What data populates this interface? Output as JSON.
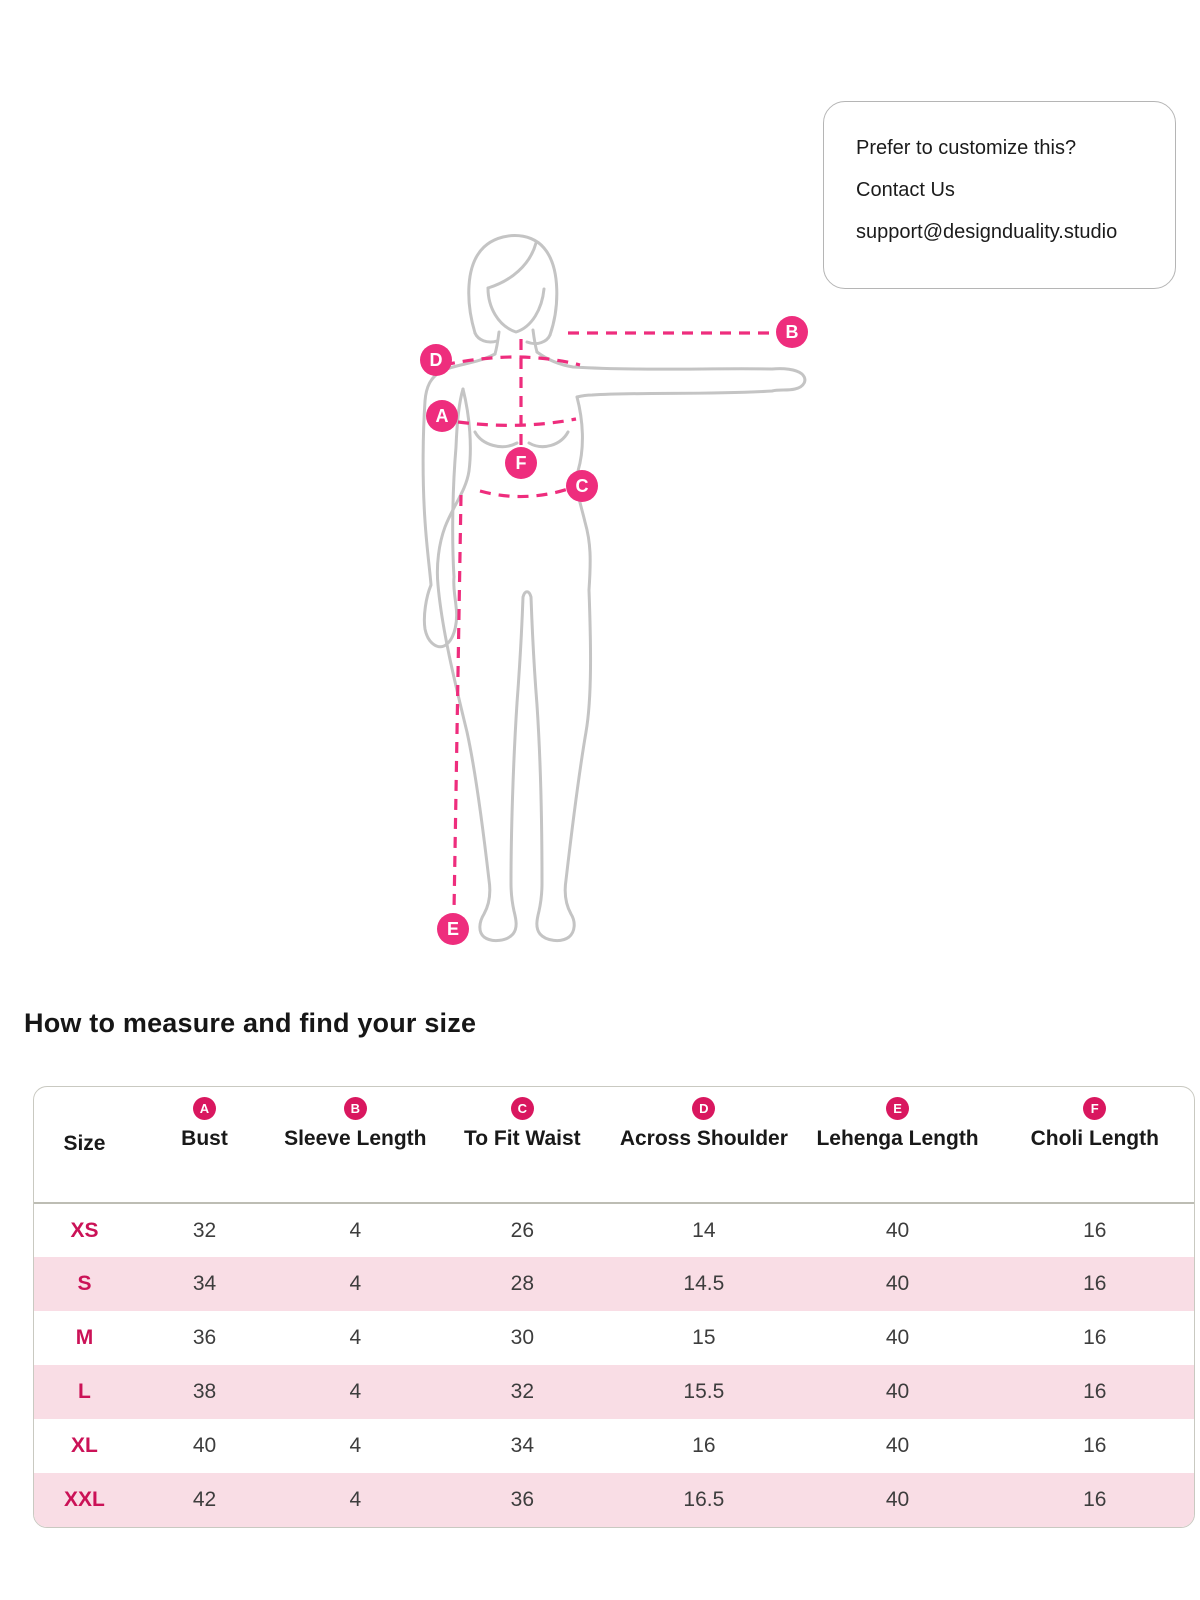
{
  "colors": {
    "accent_pink": "#ee2d7d",
    "badge_pink": "#d9175f",
    "size_label_pink": "#cb1257",
    "row_alt_pink": "#f9dde5",
    "figure_outline": "#c4c4c4"
  },
  "callout": {
    "lines": [
      "Prefer to customize this?",
      "Contact Us",
      "support@designduality.studio"
    ]
  },
  "figure_markers": [
    {
      "letter": "D"
    },
    {
      "letter": "B"
    },
    {
      "letter": "A"
    },
    {
      "letter": "F"
    },
    {
      "letter": "C"
    },
    {
      "letter": "E"
    }
  ],
  "section_heading": "How to measure and find your size",
  "size_chart": {
    "columns": [
      {
        "badge": "",
        "label": "Size"
      },
      {
        "badge": "A",
        "label": "Bust"
      },
      {
        "badge": "B",
        "label": "Sleeve Length"
      },
      {
        "badge": "C",
        "label": "To Fit Waist"
      },
      {
        "badge": "D",
        "label": "Across Shoulder"
      },
      {
        "badge": "E",
        "label": "Lehenga Length"
      },
      {
        "badge": "F",
        "label": "Choli Length"
      }
    ],
    "rows": [
      {
        "size": "XS",
        "values": [
          "32",
          "4",
          "26",
          "14",
          "40",
          "16"
        ]
      },
      {
        "size": "S",
        "values": [
          "34",
          "4",
          "28",
          "14.5",
          "40",
          "16"
        ]
      },
      {
        "size": "M",
        "values": [
          "36",
          "4",
          "30",
          "15",
          "40",
          "16"
        ]
      },
      {
        "size": "L",
        "values": [
          "38",
          "4",
          "32",
          "15.5",
          "40",
          "16"
        ]
      },
      {
        "size": "XL",
        "values": [
          "40",
          "4",
          "34",
          "16",
          "40",
          "16"
        ]
      },
      {
        "size": "XXL",
        "values": [
          "42",
          "4",
          "36",
          "16.5",
          "40",
          "16"
        ]
      }
    ]
  }
}
